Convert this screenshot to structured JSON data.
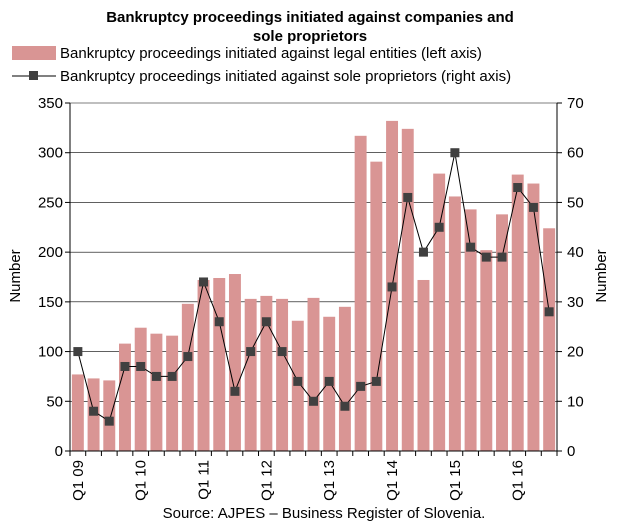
{
  "chart_data": {
    "type": "bar",
    "title_lines": [
      "Bankruptcy proceedings initiated against companies and",
      "sole proprietors"
    ],
    "legend": [
      {
        "label": "Bankruptcy proceedings initiated against legal entities (left axis)",
        "kind": "bar"
      },
      {
        "label": "Bankruptcy proceedings initiated against sole proprietors (right axis)",
        "kind": "line"
      }
    ],
    "ylabel_left": "Number",
    "ylabel_right": "Number",
    "ylim_left": [
      0,
      350
    ],
    "ylim_right": [
      0,
      70
    ],
    "yticks_left": [
      "0",
      "50",
      "100",
      "150",
      "200",
      "250",
      "300",
      "350"
    ],
    "yticks_right": [
      "0",
      "10",
      "20",
      "30",
      "40",
      "50",
      "60",
      "70"
    ],
    "x_labels": [
      {
        "index": 0,
        "text": "Q1 09"
      },
      {
        "index": 4,
        "text": "Q1 10"
      },
      {
        "index": 8,
        "text": "Q1 11"
      },
      {
        "index": 12,
        "text": "Q1 12"
      },
      {
        "index": 16,
        "text": "Q1 13"
      },
      {
        "index": 20,
        "text": "Q1 14"
      },
      {
        "index": 24,
        "text": "Q1 15"
      },
      {
        "index": 28,
        "text": "Q1 16"
      }
    ],
    "grid": true,
    "bar_color": "#d99594",
    "line_color": "#000000",
    "marker_color": "#404040",
    "bars": [
      77,
      73,
      71,
      108,
      124,
      118,
      116,
      148,
      172,
      174,
      178,
      153,
      156,
      153,
      131,
      154,
      135,
      145,
      317,
      291,
      332,
      324,
      172,
      279,
      256,
      243,
      202,
      238,
      278,
      269,
      224
    ],
    "line": [
      20,
      8,
      6,
      17,
      17,
      15,
      15,
      19,
      34,
      26,
      12,
      20,
      26,
      20,
      14,
      10,
      14,
      9,
      13,
      14,
      33,
      51,
      40,
      45,
      60,
      41,
      39,
      39,
      53,
      49,
      28
    ]
  },
  "source": "Source: AJPES – Business Register of Slovenia."
}
